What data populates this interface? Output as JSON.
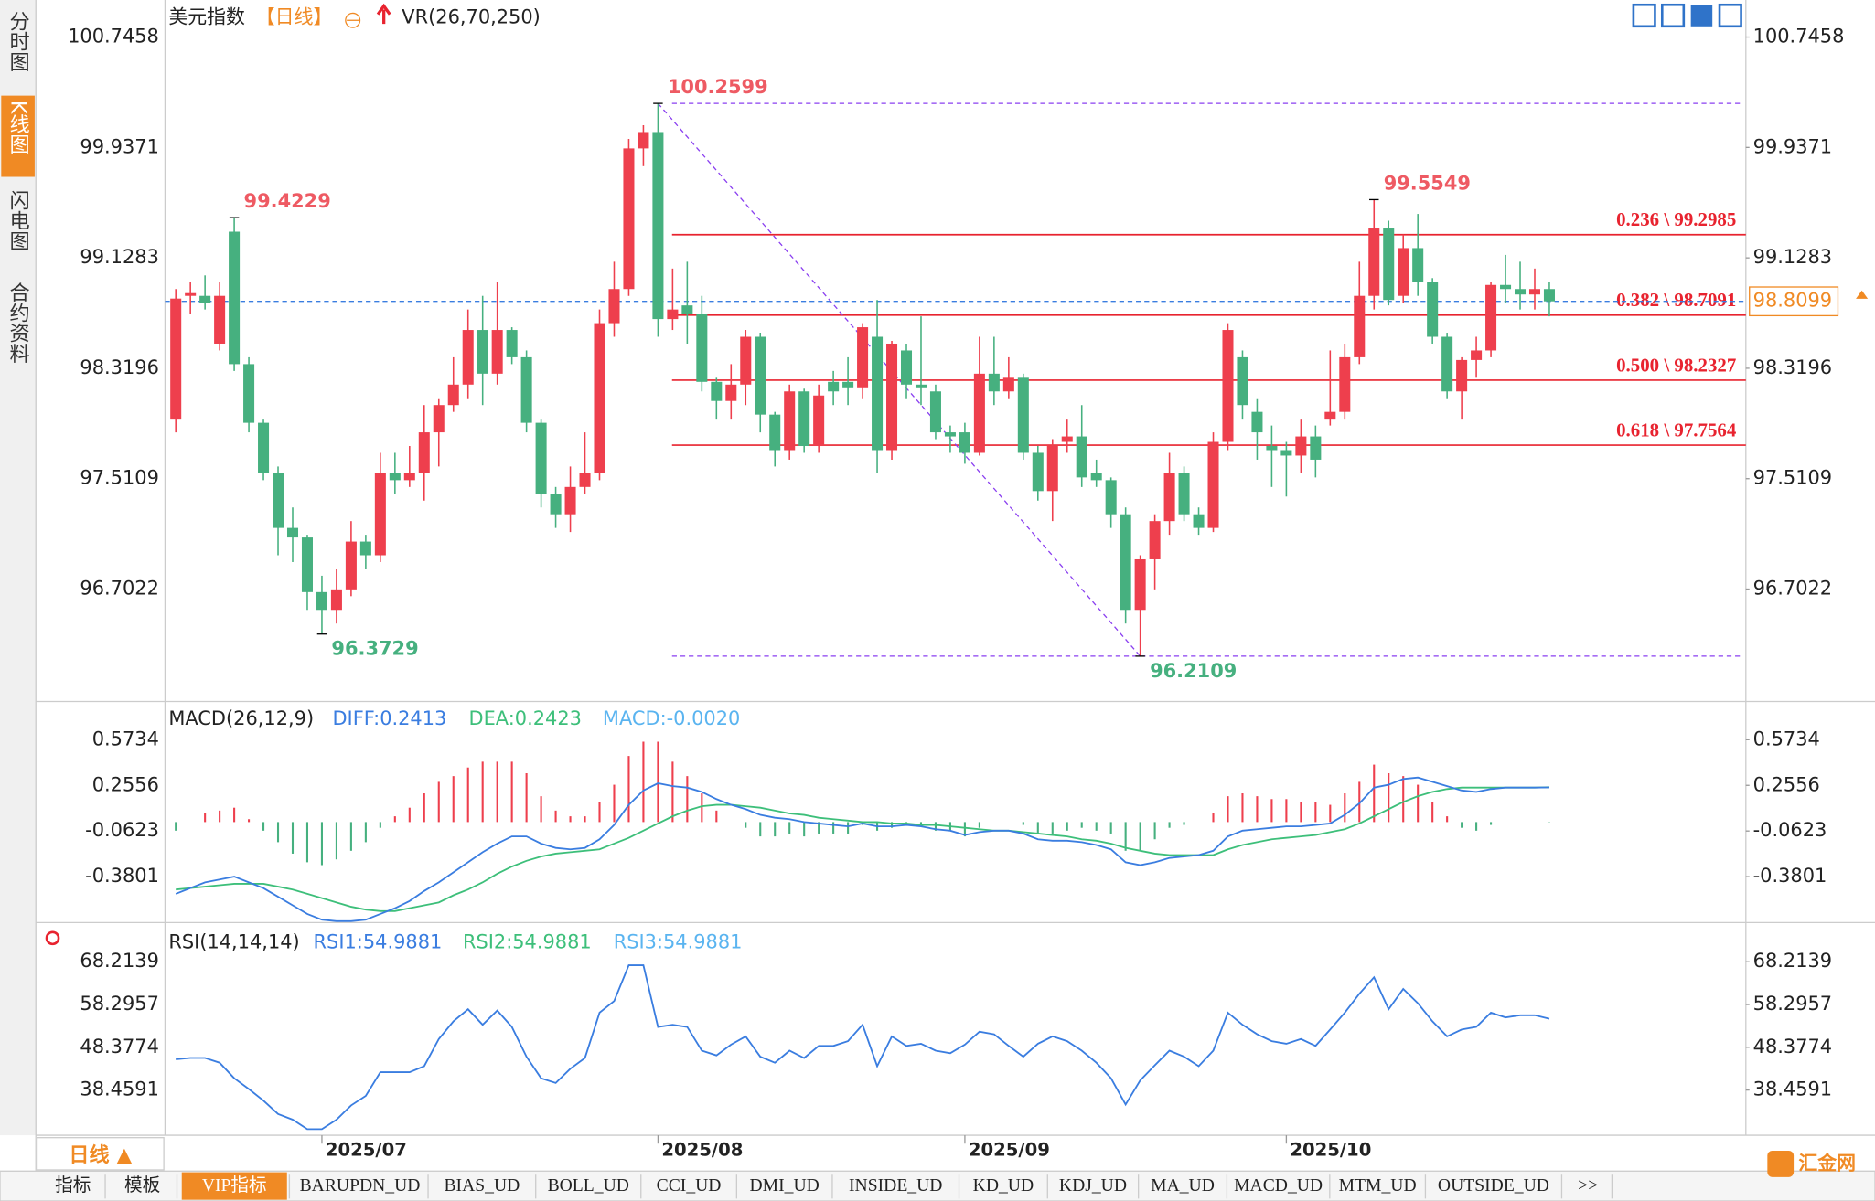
{
  "header": {
    "title": "美元指数",
    "period": "【日线】",
    "indicator": "VR(26,70,250)"
  },
  "sidebar": {
    "tabs": [
      "分时图",
      "K线图",
      "闪电图",
      "合约资料"
    ]
  },
  "footer": {
    "period_button": "日线 ▲",
    "tabs": [
      "指标",
      "模板",
      "VIP指标",
      "BARUPDN_UD",
      "BIAS_UD",
      "BOLL_UD",
      "CCI_UD",
      "DMI_UD",
      "INSIDE_UD",
      "KD_UD",
      "KDJ_UD",
      "MA_UD",
      "MACD_UD",
      "MTM_UD",
      "OUTSIDE_UD",
      ">>"
    ],
    "logo": "汇金网"
  },
  "chart_data": [
    {
      "type": "candlestick",
      "up_color": "#ee3f4d",
      "down_color": "#46b07f",
      "categories": [
        null,
        null,
        null,
        null,
        null,
        null,
        null,
        null,
        null,
        null,
        "2025/07",
        null,
        null,
        null,
        null,
        null,
        null,
        null,
        null,
        null,
        null,
        null,
        null,
        null,
        null,
        null,
        null,
        null,
        null,
        null,
        null,
        null,
        null,
        "2025/08",
        null,
        null,
        null,
        null,
        null,
        null,
        null,
        null,
        null,
        null,
        null,
        null,
        null,
        null,
        null,
        null,
        null,
        null,
        null,
        null,
        "2025/09",
        null,
        null,
        null,
        null,
        null,
        null,
        null,
        null,
        null,
        null,
        null,
        null,
        null,
        null,
        null,
        null,
        null,
        null,
        null,
        null,
        null,
        "2025/10",
        null,
        null,
        null,
        null,
        null,
        null,
        null,
        null,
        null,
        null,
        null,
        null,
        null,
        null,
        null,
        null,
        null,
        null
      ],
      "open": [
        97.95,
        98.85,
        98.85,
        98.5,
        99.32,
        98.35,
        97.92,
        97.55,
        97.15,
        97.08,
        96.68,
        96.55,
        96.7,
        97.05,
        96.95,
        97.55,
        97.5,
        97.55,
        97.85,
        98.05,
        98.2,
        98.6,
        98.28,
        98.6,
        98.4,
        97.92,
        97.4,
        97.25,
        97.45,
        97.55,
        98.65,
        98.9,
        99.93,
        100.05,
        98.68,
        98.78,
        98.72,
        98.22,
        98.08,
        98.2,
        98.55,
        97.98,
        97.72,
        98.15,
        97.75,
        98.22,
        98.22,
        98.18,
        98.55,
        97.72,
        98.45,
        98.2,
        98.15,
        97.85,
        97.85,
        97.7,
        98.28,
        98.15,
        98.25,
        97.7,
        97.42,
        97.78,
        97.82,
        97.55,
        97.5,
        97.25,
        96.55,
        96.92,
        97.2,
        97.55,
        97.25,
        97.15,
        97.78,
        98.4,
        98.0,
        97.75,
        97.72,
        97.68,
        97.82,
        97.95,
        98.0,
        98.4,
        98.85,
        99.35,
        98.85,
        99.2,
        98.95,
        98.55,
        98.15,
        98.38,
        98.45,
        98.93,
        98.9,
        98.86,
        98.9
      ],
      "high": [
        98.9,
        98.95,
        99.0,
        98.95,
        99.4229,
        98.4,
        97.95,
        97.6,
        97.3,
        97.1,
        96.8,
        96.85,
        97.2,
        97.1,
        97.7,
        97.7,
        97.75,
        98.05,
        98.1,
        98.4,
        98.75,
        98.85,
        98.95,
        98.62,
        98.45,
        97.95,
        97.45,
        97.6,
        97.85,
        98.75,
        99.1,
        100.0,
        100.1,
        100.2599,
        99.05,
        99.1,
        98.85,
        98.25,
        98.35,
        98.6,
        98.58,
        98.0,
        98.2,
        98.17,
        98.2,
        98.3,
        98.4,
        98.65,
        98.82,
        98.52,
        98.5,
        98.7,
        98.2,
        97.9,
        97.92,
        98.55,
        98.55,
        98.4,
        98.28,
        97.75,
        97.8,
        97.95,
        98.05,
        97.65,
        97.52,
        97.3,
        96.95,
        97.25,
        97.7,
        97.6,
        97.3,
        97.85,
        98.65,
        98.45,
        98.1,
        97.9,
        97.78,
        97.95,
        97.9,
        98.45,
        98.5,
        99.1,
        99.5549,
        99.4,
        99.3,
        99.45,
        98.98,
        98.58,
        98.4,
        98.55,
        98.95,
        99.15,
        99.1,
        99.05,
        98.95
      ],
      "low": [
        97.85,
        98.72,
        98.75,
        98.45,
        98.3,
        97.85,
        97.5,
        96.95,
        96.9,
        96.55,
        96.3729,
        96.45,
        96.65,
        96.85,
        96.9,
        97.4,
        97.45,
        97.35,
        97.6,
        98.0,
        98.1,
        98.05,
        98.2,
        98.35,
        97.85,
        97.3,
        97.15,
        97.12,
        97.4,
        97.5,
        98.55,
        98.85,
        99.8,
        98.55,
        98.6,
        98.5,
        98.15,
        97.95,
        97.95,
        98.05,
        97.85,
        97.6,
        97.65,
        97.7,
        97.7,
        98.05,
        98.05,
        98.1,
        97.55,
        97.65,
        98.1,
        98.05,
        97.8,
        97.7,
        97.62,
        97.68,
        98.05,
        98.1,
        97.65,
        97.35,
        97.2,
        97.7,
        97.45,
        97.45,
        97.15,
        96.45,
        96.2109,
        96.7,
        97.1,
        97.2,
        97.1,
        97.12,
        97.72,
        97.95,
        97.65,
        97.45,
        97.38,
        97.55,
        97.52,
        97.9,
        97.95,
        98.35,
        98.75,
        98.78,
        98.8,
        98.85,
        98.5,
        98.1,
        97.95,
        98.25,
        98.4,
        98.8,
        98.75,
        98.75,
        98.7
      ],
      "close": [
        98.83,
        98.87,
        98.8,
        98.85,
        98.35,
        97.92,
        97.55,
        97.15,
        97.08,
        96.68,
        96.55,
        96.7,
        97.05,
        96.95,
        97.55,
        97.5,
        97.55,
        97.85,
        98.05,
        98.2,
        98.6,
        98.28,
        98.6,
        98.4,
        97.92,
        97.4,
        97.25,
        97.45,
        97.55,
        98.65,
        98.9,
        99.93,
        100.05,
        98.68,
        98.75,
        98.72,
        98.22,
        98.08,
        98.2,
        98.55,
        97.98,
        97.72,
        98.15,
        97.75,
        98.12,
        98.15,
        98.18,
        98.62,
        97.72,
        98.5,
        98.2,
        98.18,
        97.85,
        97.82,
        97.7,
        98.28,
        98.15,
        98.25,
        97.7,
        97.42,
        97.75,
        97.82,
        97.52,
        97.5,
        97.25,
        96.55,
        96.92,
        97.2,
        97.55,
        97.25,
        97.15,
        97.78,
        98.6,
        98.05,
        97.85,
        97.72,
        97.68,
        97.82,
        97.65,
        98.0,
        98.4,
        98.85,
        99.35,
        98.82,
        99.2,
        98.95,
        98.55,
        98.15,
        98.38,
        98.45,
        98.93,
        98.9,
        98.86,
        98.9,
        98.8099
      ],
      "ylim": [
        95.879,
        101.017
      ],
      "yticks": [
        100.7458,
        99.9371,
        99.1283,
        98.3196,
        97.5109,
        96.7022
      ],
      "last_price": 98.8099,
      "last_price_color": "#3a7de0",
      "tag_color": "#f08a24",
      "fib_color": "#e8232f",
      "fib_levels": [
        {
          "value": 99.2985,
          "label": "0.236 \\ 99.2985"
        },
        {
          "value": 98.7091,
          "label": "0.382 \\ 98.7091"
        },
        {
          "value": 98.2327,
          "label": "0.500 \\ 98.2327"
        },
        {
          "value": 97.7564,
          "label": "0.618 \\ 97.7564"
        }
      ],
      "swing_color": "#8a3ff0"
    },
    {
      "type": "macd",
      "title": "MACD(26,12,9)",
      "ylim": [
        -0.7,
        0.815
      ],
      "yticks": [
        0.5734,
        0.2556,
        -0.0623,
        -0.3801
      ],
      "up_color": "#ee3f4d",
      "down_color": "#46b07f",
      "series": [
        {
          "name": "DIFF:0.2413",
          "color": "#3a7de0",
          "values": [
            -0.5,
            -0.46,
            -0.42,
            -0.4,
            -0.38,
            -0.42,
            -0.46,
            -0.52,
            -0.58,
            -0.64,
            -0.68,
            -0.69,
            -0.69,
            -0.68,
            -0.64,
            -0.6,
            -0.55,
            -0.48,
            -0.42,
            -0.35,
            -0.28,
            -0.21,
            -0.15,
            -0.1,
            -0.1,
            -0.15,
            -0.18,
            -0.19,
            -0.18,
            -0.12,
            -0.02,
            0.12,
            0.22,
            0.27,
            0.25,
            0.24,
            0.21,
            0.16,
            0.12,
            0.09,
            0.05,
            0.03,
            0.02,
            0.0,
            -0.01,
            -0.02,
            -0.03,
            -0.01,
            -0.03,
            -0.03,
            -0.02,
            -0.03,
            -0.05,
            -0.06,
            -0.09,
            -0.07,
            -0.06,
            -0.06,
            -0.08,
            -0.12,
            -0.13,
            -0.13,
            -0.14,
            -0.16,
            -0.19,
            -0.28,
            -0.3,
            -0.28,
            -0.25,
            -0.24,
            -0.23,
            -0.2,
            -0.1,
            -0.06,
            -0.05,
            -0.04,
            -0.03,
            -0.03,
            -0.02,
            -0.01,
            0.05,
            0.13,
            0.24,
            0.26,
            0.3,
            0.31,
            0.28,
            0.25,
            0.22,
            0.21,
            0.23,
            0.24,
            0.24,
            0.24,
            0.2413
          ]
        },
        {
          "name": "DEA:0.2423",
          "color": "#3dbf7a",
          "values": [
            -0.47,
            -0.46,
            -0.45,
            -0.44,
            -0.43,
            -0.43,
            -0.43,
            -0.45,
            -0.47,
            -0.5,
            -0.53,
            -0.56,
            -0.59,
            -0.61,
            -0.62,
            -0.62,
            -0.6,
            -0.58,
            -0.56,
            -0.51,
            -0.47,
            -0.42,
            -0.36,
            -0.31,
            -0.27,
            -0.24,
            -0.22,
            -0.21,
            -0.2,
            -0.19,
            -0.15,
            -0.11,
            -0.06,
            -0.01,
            0.04,
            0.08,
            0.11,
            0.12,
            0.12,
            0.11,
            0.1,
            0.08,
            0.06,
            0.05,
            0.03,
            0.02,
            0.01,
            0.0,
            0.0,
            -0.01,
            -0.01,
            -0.02,
            -0.02,
            -0.03,
            -0.04,
            -0.05,
            -0.06,
            -0.06,
            -0.07,
            -0.08,
            -0.09,
            -0.1,
            -0.12,
            -0.13,
            -0.15,
            -0.18,
            -0.2,
            -0.22,
            -0.23,
            -0.23,
            -0.23,
            -0.23,
            -0.19,
            -0.16,
            -0.14,
            -0.12,
            -0.11,
            -0.1,
            -0.09,
            -0.07,
            -0.05,
            -0.01,
            0.04,
            0.09,
            0.14,
            0.18,
            0.21,
            0.23,
            0.24,
            0.24,
            0.24,
            0.24,
            0.24,
            0.24,
            0.2423
          ]
        },
        {
          "name": "MACD:-0.0020",
          "color": "#5ab4f0",
          "values": [
            -0.06,
            0,
            0.06,
            0.08,
            0.1,
            0.02,
            -0.06,
            -0.14,
            -0.22,
            -0.28,
            -0.3,
            -0.26,
            -0.2,
            -0.14,
            -0.04,
            0.04,
            0.1,
            0.2,
            0.28,
            0.32,
            0.38,
            0.42,
            0.42,
            0.42,
            0.34,
            0.18,
            0.08,
            0.04,
            0.04,
            0.14,
            0.26,
            0.46,
            0.56,
            0.56,
            0.42,
            0.32,
            0.2,
            0.08,
            0,
            -0.04,
            -0.1,
            -0.1,
            -0.08,
            -0.1,
            -0.08,
            -0.08,
            -0.08,
            -0.02,
            -0.06,
            -0.04,
            -0.02,
            -0.02,
            -0.06,
            -0.06,
            -0.1,
            -0.04,
            0,
            0,
            -0.02,
            -0.08,
            -0.08,
            -0.06,
            -0.04,
            -0.06,
            -0.08,
            -0.2,
            -0.2,
            -0.12,
            -0.04,
            -0.02,
            0,
            0.06,
            0.18,
            0.2,
            0.18,
            0.16,
            0.16,
            0.14,
            0.14,
            0.12,
            0.2,
            0.28,
            0.4,
            0.34,
            0.32,
            0.26,
            0.14,
            0.04,
            -0.04,
            -0.06,
            -0.02,
            0,
            0,
            0,
            -0.002
          ]
        }
      ]
    },
    {
      "type": "line",
      "title": "RSI(14,14,14)",
      "ylim": [
        27.98,
        76.47
      ],
      "yticks": [
        68.2139,
        58.2957,
        48.3774,
        38.4591
      ],
      "series": [
        {
          "name": "RSI1:54.9881",
          "color": "#3a7de0",
          "values": [
            45.6,
            45.9,
            45.9,
            44.8,
            41.2,
            38.7,
            36.0,
            32.9,
            31.6,
            29.4,
            29.4,
            31.6,
            34.9,
            37.1,
            42.6,
            42.6,
            42.6,
            44.0,
            50.3,
            54.4,
            57.2,
            53.6,
            56.9,
            53.1,
            46.2,
            41.2,
            40.1,
            43.4,
            45.9,
            56.4,
            59.1,
            67.4,
            67.4,
            53.1,
            53.6,
            53.1,
            47.6,
            46.5,
            49.0,
            50.9,
            46.2,
            44.8,
            47.6,
            45.9,
            48.7,
            48.7,
            49.8,
            53.6,
            44.0,
            50.9,
            48.7,
            49.2,
            47.6,
            47.0,
            49.0,
            52.0,
            51.4,
            48.7,
            46.2,
            49.2,
            50.9,
            49.8,
            47.6,
            44.8,
            41.2,
            35.1,
            40.7,
            44.2,
            47.6,
            46.2,
            44.0,
            47.6,
            56.4,
            53.6,
            51.4,
            49.8,
            49.2,
            50.3,
            48.7,
            52.5,
            56.4,
            60.8,
            64.6,
            57.2,
            61.9,
            58.6,
            54.4,
            50.9,
            52.5,
            53.1,
            56.4,
            55.3,
            55.8,
            55.8,
            54.9881
          ]
        },
        {
          "name": "RSI2:54.9881",
          "color": "#3dbf7a"
        },
        {
          "name": "RSI3:54.9881",
          "color": "#5ab4f0"
        }
      ]
    }
  ]
}
